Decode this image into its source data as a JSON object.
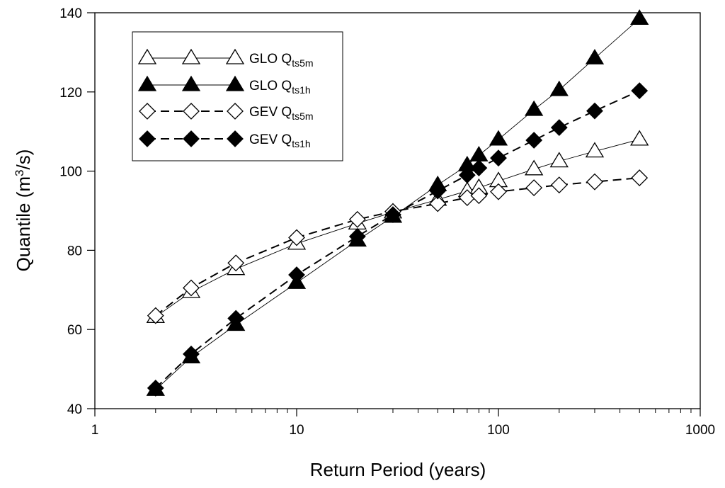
{
  "chart_data": {
    "type": "scatter",
    "xlabel": "Return Period (years)",
    "ylabel_main": "Quantile (m",
    "ylabel_sup": "3",
    "ylabel_end": "/s)",
    "x_scale": "log",
    "xlim": [
      1,
      1000
    ],
    "ylim": [
      40,
      140
    ],
    "x_ticks": [
      1,
      10,
      100,
      1000
    ],
    "x_tick_labels": [
      "1",
      "10",
      "100",
      "1000"
    ],
    "y_ticks": [
      40,
      60,
      80,
      100,
      120,
      140
    ],
    "y_tick_labels": [
      "40",
      "60",
      "80",
      "100",
      "120",
      "140"
    ],
    "grid": false,
    "legend_position": "top-left",
    "x": [
      2,
      3,
      5,
      10,
      20,
      30,
      50,
      70,
      80,
      100,
      150,
      200,
      300,
      500
    ],
    "series": [
      {
        "name_base": "GLO Q",
        "name_sub": "ts5m",
        "marker": "triangle-open",
        "line": "solid",
        "values": [
          63.2,
          69.5,
          75.3,
          81.7,
          86.8,
          89.6,
          92.8,
          95.0,
          95.8,
          97.5,
          100.5,
          102.5,
          105.0,
          108.0
        ]
      },
      {
        "name_base": "GLO Q",
        "name_sub": "ts1h",
        "marker": "triangle-filled",
        "line": "solid",
        "values": [
          44.8,
          53.0,
          61.2,
          71.8,
          82.5,
          88.5,
          96.5,
          101.5,
          104.0,
          108.0,
          115.5,
          120.5,
          128.5,
          138.5
        ]
      },
      {
        "name_base": "GEV Q",
        "name_sub": "ts5m",
        "marker": "diamond-open",
        "line": "dashed",
        "values": [
          63.5,
          70.5,
          76.8,
          83.2,
          87.8,
          89.8,
          91.8,
          93.3,
          93.8,
          94.8,
          95.8,
          96.5,
          97.3,
          98.3
        ]
      },
      {
        "name_base": "GEV Q",
        "name_sub": "ts1h",
        "marker": "diamond-filled",
        "line": "dashed",
        "values": [
          45.2,
          53.8,
          62.8,
          73.8,
          83.5,
          89.0,
          95.0,
          99.0,
          100.8,
          103.3,
          107.8,
          111.0,
          115.2,
          120.3
        ]
      }
    ]
  }
}
